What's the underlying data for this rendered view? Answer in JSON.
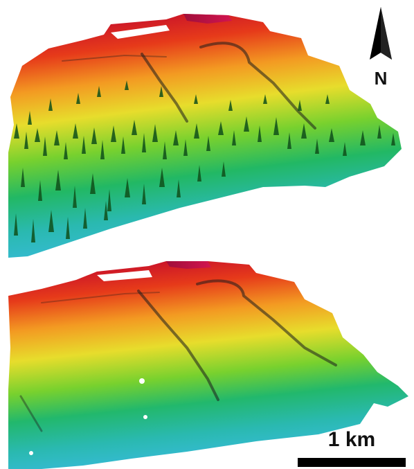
{
  "figure": {
    "north_arrow": {
      "label": "N",
      "icon": "north-arrow-icon"
    },
    "scale_bar": {
      "label": "1 km"
    },
    "panels": [
      {
        "id": "top",
        "surface": "elevation-with-vegetation",
        "colormap": [
          "#d11e1e",
          "#f07d1c",
          "#e9d82a",
          "#5fcf2c",
          "#1fb28d",
          "#35b8e6"
        ]
      },
      {
        "id": "bottom",
        "surface": "bare-earth-elevation",
        "colormap": [
          "#d11e1e",
          "#f07d1c",
          "#e9d82a",
          "#5fcf2c",
          "#1fb28d",
          "#35b8e6"
        ]
      }
    ]
  }
}
